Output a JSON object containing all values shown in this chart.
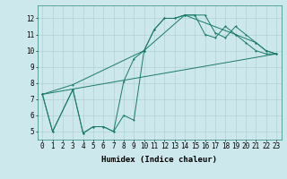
{
  "xlabel": "Humidex (Indice chaleur)",
  "background_color": "#cce8ec",
  "grid_color": "#aaccd0",
  "line_color": "#1a7a6a",
  "xlim": [
    -0.5,
    23.5
  ],
  "ylim": [
    4.5,
    12.8
  ],
  "xticks": [
    0,
    1,
    2,
    3,
    4,
    5,
    6,
    7,
    8,
    9,
    10,
    11,
    12,
    13,
    14,
    15,
    16,
    17,
    18,
    19,
    20,
    21,
    22,
    23
  ],
  "yticks": [
    5,
    6,
    7,
    8,
    9,
    10,
    11,
    12
  ],
  "line1_x": [
    0,
    1,
    3,
    4,
    5,
    6,
    7,
    8,
    9,
    10,
    11,
    12,
    13,
    14,
    15,
    16,
    17,
    18,
    19,
    20,
    21,
    22,
    23
  ],
  "line1_y": [
    7.3,
    5.0,
    7.6,
    4.9,
    5.3,
    5.3,
    5.0,
    6.0,
    5.7,
    10.0,
    11.3,
    12.0,
    12.0,
    12.2,
    12.2,
    12.2,
    11.1,
    10.8,
    11.5,
    11.0,
    10.5,
    10.0,
    9.8
  ],
  "line2_x": [
    0,
    1,
    3,
    4,
    5,
    6,
    7,
    8,
    9,
    10,
    11,
    12,
    13,
    14,
    15,
    16,
    17,
    18,
    19,
    20,
    21,
    22,
    23
  ],
  "line2_y": [
    7.3,
    5.0,
    7.6,
    4.9,
    5.3,
    5.3,
    5.0,
    8.1,
    9.5,
    10.0,
    11.3,
    12.0,
    12.0,
    12.2,
    12.2,
    11.0,
    10.8,
    11.5,
    11.0,
    10.5,
    10.0,
    9.8,
    9.8
  ],
  "line3_x": [
    0,
    3,
    10,
    14,
    19,
    21,
    22,
    23
  ],
  "line3_y": [
    7.3,
    7.9,
    10.0,
    12.2,
    11.0,
    10.5,
    10.0,
    9.8
  ],
  "line4_x": [
    0,
    23
  ],
  "line4_y": [
    7.3,
    9.8
  ],
  "tick_fontsize": 5.5,
  "xlabel_fontsize": 6.5
}
